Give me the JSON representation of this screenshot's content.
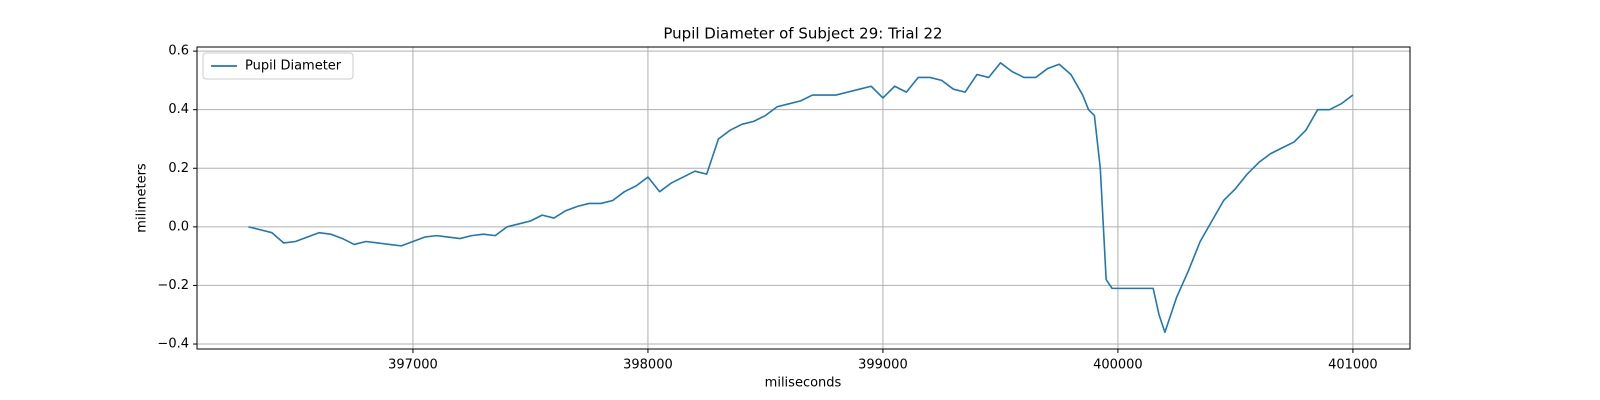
{
  "chart_data": {
    "type": "line",
    "title": "Pupil Diameter of Subject 29: Trial 22",
    "x_label": "miliseconds",
    "y_label": "milimeters",
    "x": [
      396300,
      396350,
      396400,
      396450,
      396500,
      396550,
      396600,
      396650,
      396700,
      396750,
      396800,
      396850,
      396900,
      396950,
      397000,
      397050,
      397100,
      397150,
      397200,
      397250,
      397300,
      397350,
      397400,
      397450,
      397500,
      397550,
      397600,
      397650,
      397700,
      397750,
      397800,
      397850,
      397900,
      397950,
      398000,
      398050,
      398100,
      398150,
      398200,
      398250,
      398300,
      398350,
      398400,
      398450,
      398500,
      398550,
      398600,
      398650,
      398700,
      398750,
      398800,
      398850,
      398900,
      398950,
      399000,
      399050,
      399100,
      399150,
      399200,
      399250,
      399300,
      399350,
      399400,
      399450,
      399500,
      399550,
      399600,
      399650,
      399700,
      399750,
      399800,
      399850,
      399875,
      399900,
      399925,
      399950,
      399975,
      400000,
      400050,
      400100,
      400150,
      400175,
      400200,
      400250,
      400300,
      400350,
      400400,
      400450,
      400500,
      400550,
      400600,
      400650,
      400700,
      400750,
      400800,
      400850,
      400900,
      400950,
      401000
    ],
    "series": [
      {
        "name": "Pupil Diameter",
        "color": "#1f77b4",
        "values": [
          0.0,
          -0.01,
          -0.02,
          -0.055,
          -0.05,
          -0.035,
          -0.02,
          -0.025,
          -0.04,
          -0.06,
          -0.05,
          -0.055,
          -0.06,
          -0.065,
          -0.05,
          -0.035,
          -0.03,
          -0.035,
          -0.04,
          -0.03,
          -0.025,
          -0.03,
          0.0,
          0.01,
          0.02,
          0.04,
          0.03,
          0.055,
          0.07,
          0.08,
          0.08,
          0.09,
          0.12,
          0.14,
          0.17,
          0.12,
          0.15,
          0.17,
          0.19,
          0.18,
          0.3,
          0.33,
          0.35,
          0.36,
          0.38,
          0.41,
          0.42,
          0.43,
          0.45,
          0.45,
          0.45,
          0.46,
          0.47,
          0.48,
          0.44,
          0.48,
          0.46,
          0.51,
          0.51,
          0.5,
          0.47,
          0.46,
          0.52,
          0.51,
          0.56,
          0.53,
          0.51,
          0.51,
          0.54,
          0.555,
          0.52,
          0.45,
          0.4,
          0.38,
          0.2,
          -0.18,
          -0.21,
          -0.21,
          -0.21,
          -0.21,
          -0.21,
          -0.3,
          -0.36,
          -0.24,
          -0.15,
          -0.05,
          0.02,
          0.09,
          0.13,
          0.18,
          0.22,
          0.25,
          0.27,
          0.29,
          0.33,
          0.4,
          0.4,
          0.42,
          0.45
        ]
      }
    ],
    "xlim": [
      396081,
      401243
    ],
    "xticks": [
      397000,
      398000,
      399000,
      400000,
      401000
    ],
    "ylim": [
      -0.417,
      0.614
    ],
    "yticks": [
      {
        "value": -0.4,
        "label": "−0.4"
      },
      {
        "value": -0.2,
        "label": "−0.2"
      },
      {
        "value": 0,
        "label": "0.0"
      },
      0.2,
      0.4,
      0.6
    ],
    "grid": true,
    "legend": "upper left"
  }
}
